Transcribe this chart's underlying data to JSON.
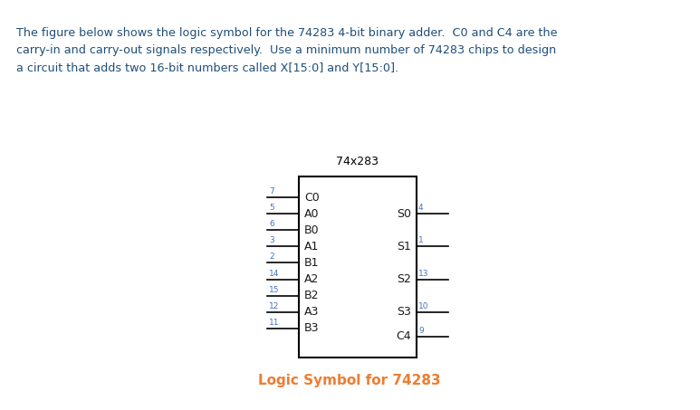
{
  "title": "74x283",
  "caption": "Logic Symbol for 74283",
  "header_text": "The figure below shows the logic symbol for the 74283 4-bit binary adder.  C0 and C4 are the\ncarry-in and carry-out signals respectively.  Use a minimum number of 74283 chips to design\na circuit that adds two 16-bit numbers called X[15:0] and Y[15:0].",
  "header_color": "#1F4E79",
  "left_pins": [
    {
      "label": "C0",
      "pin": "7",
      "row": 9
    },
    {
      "label": "A0",
      "pin": "5",
      "row": 8
    },
    {
      "label": "B0",
      "pin": "6",
      "row": 7
    },
    {
      "label": "A1",
      "pin": "3",
      "row": 6
    },
    {
      "label": "B1",
      "pin": "2",
      "row": 5
    },
    {
      "label": "A2",
      "pin": "14",
      "row": 4
    },
    {
      "label": "B2",
      "pin": "15",
      "row": 3
    },
    {
      "label": "A3",
      "pin": "12",
      "row": 2
    },
    {
      "label": "B3",
      "pin": "11",
      "row": 1
    }
  ],
  "right_pins": [
    {
      "label": "S0",
      "pin": "4",
      "row": 8
    },
    {
      "label": "S1",
      "pin": "1",
      "row": 6
    },
    {
      "label": "S2",
      "pin": "13",
      "row": 4
    },
    {
      "label": "S3",
      "pin": "10",
      "row": 2
    },
    {
      "label": "C4",
      "pin": "9",
      "row": 0.5
    }
  ],
  "pin_color": "#4472C4",
  "label_color": "#1a1a1a",
  "box_color": "#000000",
  "bg_color": "#ffffff",
  "title_color": "#000000",
  "caption_color": "#ED7D31"
}
